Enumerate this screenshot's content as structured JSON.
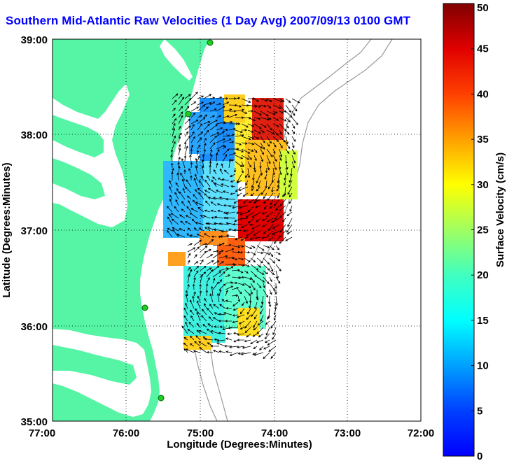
{
  "title": "Southern Mid-Atlantic Raw Velocities (1 Day Avg) 2007/09/13 0100 GMT",
  "map": {
    "xlabel": "Longitude (Degrees:Minutes)",
    "ylabel": "Latitude (Degrees:Minutes)",
    "x_ticks": [
      "77:00",
      "76:00",
      "75:00",
      "74:00",
      "73:00",
      "72:00"
    ],
    "y_ticks": [
      "39:00",
      "38:00",
      "37:00",
      "36:00",
      "35:00"
    ],
    "land_color": "#55f5a5",
    "sea_color": "#ffffff",
    "grid": "dotted",
    "stations": 5
  },
  "colorbar": {
    "label": "Surface Velocity (cm/s)",
    "ticks": [
      "50",
      "45",
      "40",
      "35",
      "30",
      "25",
      "20",
      "15",
      "10",
      "5",
      "0"
    ],
    "range": [
      0,
      50
    ],
    "colormap": "jet",
    "units": "cm/s"
  },
  "chart_data": {
    "type": "heatmap",
    "title": "Southern Mid-Atlantic Raw Velocities (1 Day Avg) 2007/09/13 0100 GMT",
    "xlabel": "Longitude (Degrees:Minutes)",
    "ylabel": "Latitude (Degrees:Minutes)",
    "xlim": [
      -77,
      -72
    ],
    "ylim": [
      35,
      39
    ],
    "zlabel": "Surface Velocity (cm/s)",
    "zlim": [
      0,
      50
    ]
  }
}
